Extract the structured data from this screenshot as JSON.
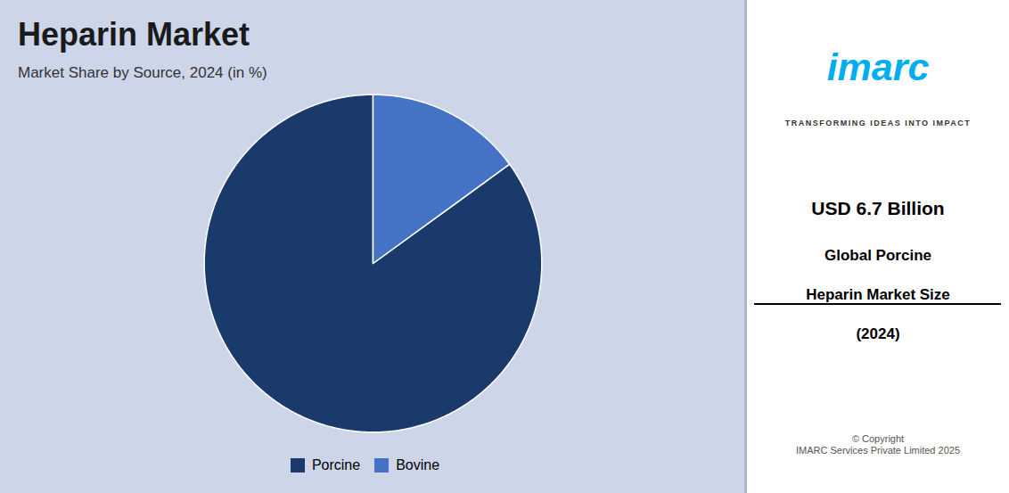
{
  "chart_data": {
    "type": "pie",
    "title": "Heparin Market",
    "subtitle": "Market Share by Source, 2024 (in %)",
    "categories": [
      "Porcine",
      "Bovine"
    ],
    "values": [
      85,
      15
    ],
    "colors": [
      "#1a3a6b",
      "#4472c4"
    ],
    "legend": "bottom",
    "annotations": [
      "imarc",
      "TRANSFORMING IDEAS INTO IMPACT",
      "USD 6.7 Billion",
      "Global Porcine",
      "Heparin Market Size",
      "(2024)",
      "© Copyright\nIMARC Services Private Limited 2025"
    ]
  }
}
